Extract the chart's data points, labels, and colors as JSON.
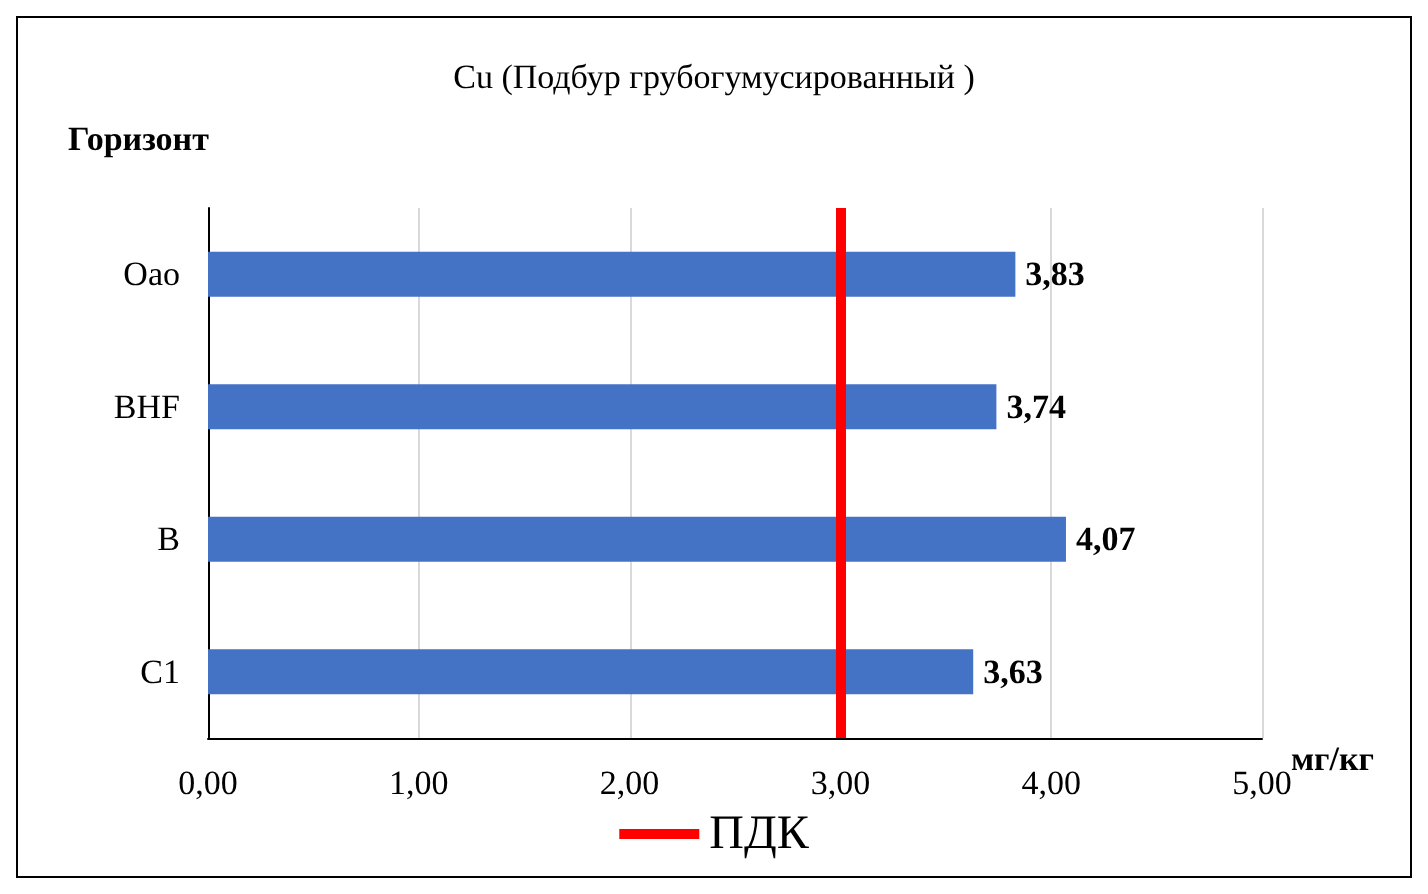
{
  "chart_data": {
    "type": "bar",
    "orientation": "horizontal",
    "title": "Cu (Подбур грубогумусированный )",
    "ylabel": "Горизонт",
    "xlabel": "мг/кг",
    "categories": [
      "Oao",
      "BHF",
      "B",
      "C1"
    ],
    "values": [
      3.83,
      3.74,
      4.07,
      3.63
    ],
    "value_labels": [
      "3,83",
      "3,74",
      "4,07",
      "3,63"
    ],
    "color": "#4472c4",
    "xlim": [
      0,
      5
    ],
    "xticks": [
      {
        "value": 0,
        "label": "0,00"
      },
      {
        "value": 1,
        "label": "1,00"
      },
      {
        "value": 2,
        "label": "2,00"
      },
      {
        "value": 3,
        "label": "3,00"
      },
      {
        "value": 4,
        "label": "4,00"
      },
      {
        "value": 5,
        "label": "5,00"
      }
    ],
    "grid": "x",
    "legend": "bottom",
    "ref_lines": [
      {
        "axis": "x",
        "value": 3,
        "label": "ПДК",
        "color": "#ff0000",
        "line_style": "solid"
      }
    ]
  }
}
